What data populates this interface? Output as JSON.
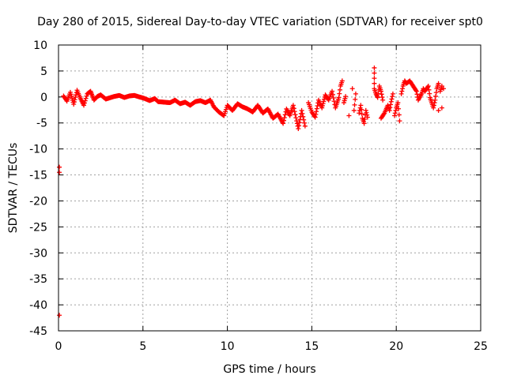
{
  "chart_data": {
    "type": "scatter",
    "title": "Day 280 of 2015, Sidereal Day-to-day VTEC variation (SDTVAR) for receiver spt0",
    "xlabel": "GPS time / hours",
    "ylabel": "SDTVAR / TECUs",
    "xlim": [
      0,
      25
    ],
    "ylim": [
      -45,
      10
    ],
    "xticks": [
      0,
      5,
      10,
      15,
      20,
      25
    ],
    "yticks": [
      10,
      5,
      0,
      -5,
      -10,
      -15,
      -20,
      -25,
      -30,
      -35,
      -40,
      -45
    ],
    "grid": true,
    "marker": "+",
    "colors": {
      "series": "#ff0000",
      "grid": "#a0a0a0",
      "axis": "#000000"
    },
    "series": [
      {
        "name": "SDTVAR",
        "points": [
          [
            0.05,
            -13.5
          ],
          [
            0.05,
            -14.5
          ],
          [
            0.05,
            -42.0
          ],
          [
            0.3,
            0.2
          ],
          [
            0.5,
            -0.8
          ],
          [
            0.7,
            0.9
          ],
          [
            0.9,
            -1.4
          ],
          [
            1.1,
            1.3
          ],
          [
            1.3,
            -0.3
          ],
          [
            1.5,
            -1.6
          ],
          [
            1.7,
            0.6
          ],
          [
            1.9,
            1.1
          ],
          [
            2.1,
            -0.6
          ],
          [
            2.3,
            0.1
          ],
          [
            2.5,
            0.4
          ],
          [
            2.8,
            -0.4
          ],
          [
            3.0,
            -0.2
          ],
          [
            3.3,
            0.1
          ],
          [
            3.6,
            0.3
          ],
          [
            3.9,
            -0.1
          ],
          [
            4.2,
            0.2
          ],
          [
            4.5,
            0.3
          ],
          [
            4.8,
            0.0
          ],
          [
            5.1,
            -0.3
          ],
          [
            5.4,
            -0.7
          ],
          [
            5.7,
            -0.3
          ],
          [
            5.9,
            -0.9
          ],
          [
            6.6,
            -1.1
          ],
          [
            6.9,
            -0.6
          ],
          [
            7.2,
            -1.3
          ],
          [
            7.5,
            -1.0
          ],
          [
            7.8,
            -1.6
          ],
          [
            8.1,
            -0.9
          ],
          [
            8.4,
            -0.7
          ],
          [
            8.7,
            -1.1
          ],
          [
            9.0,
            -0.6
          ],
          [
            9.2,
            -1.9
          ],
          [
            9.5,
            -2.9
          ],
          [
            9.8,
            -3.6
          ],
          [
            10.0,
            -1.6
          ],
          [
            10.3,
            -2.6
          ],
          [
            10.6,
            -1.3
          ],
          [
            10.9,
            -1.9
          ],
          [
            11.2,
            -2.3
          ],
          [
            11.5,
            -2.9
          ],
          [
            11.8,
            -1.6
          ],
          [
            12.1,
            -3.1
          ],
          [
            12.4,
            -2.3
          ],
          [
            12.7,
            -4.1
          ],
          [
            13.0,
            -3.3
          ],
          [
            13.3,
            -5.1
          ],
          [
            13.5,
            -2.3
          ],
          [
            13.7,
            -3.6
          ],
          [
            13.9,
            -1.6
          ],
          [
            14.1,
            -4.6
          ],
          [
            14.2,
            -6.1
          ],
          [
            14.4,
            -2.6
          ],
          [
            14.6,
            -5.6
          ],
          [
            14.8,
            -1.1
          ],
          [
            15.0,
            -2.9
          ],
          [
            15.2,
            -3.9
          ],
          [
            15.4,
            -0.6
          ],
          [
            15.6,
            -2.1
          ],
          [
            15.8,
            0.4
          ],
          [
            16.0,
            -0.6
          ],
          [
            16.2,
            1.1
          ],
          [
            16.4,
            -2.1
          ],
          [
            16.6,
            -0.1
          ],
          [
            16.7,
            2.1
          ],
          [
            16.8,
            3.1
          ],
          [
            16.9,
            -1.1
          ],
          [
            17.0,
            0.1
          ],
          [
            17.2,
            -3.6
          ],
          [
            17.4,
            1.6
          ],
          [
            17.5,
            -2.6
          ],
          [
            17.6,
            0.6
          ],
          [
            17.8,
            -3.1
          ],
          [
            17.9,
            -1.6
          ],
          [
            18.0,
            -4.1
          ],
          [
            18.1,
            -5.1
          ],
          [
            18.2,
            -2.6
          ],
          [
            18.3,
            -3.9
          ],
          [
            18.7,
            5.6
          ],
          [
            18.7,
            4.6
          ],
          [
            18.7,
            3.6
          ],
          [
            18.7,
            2.6
          ],
          [
            18.7,
            1.6
          ],
          [
            18.8,
            0.6
          ],
          [
            18.9,
            -0.1
          ],
          [
            19.0,
            2.1
          ],
          [
            19.1,
            1.1
          ],
          [
            19.2,
            -0.6
          ],
          [
            19.1,
            -4.1
          ],
          [
            19.3,
            -3.1
          ],
          [
            19.5,
            -1.6
          ],
          [
            19.6,
            -2.6
          ],
          [
            19.7,
            -0.9
          ],
          [
            19.8,
            0.6
          ],
          [
            19.9,
            -3.6
          ],
          [
            20.0,
            -2.1
          ],
          [
            20.1,
            -1.1
          ],
          [
            20.2,
            -4.6
          ],
          [
            20.3,
            0.6
          ],
          [
            20.4,
            2.1
          ],
          [
            20.5,
            3.1
          ],
          [
            20.6,
            2.6
          ],
          [
            20.8,
            3.1
          ],
          [
            21.0,
            2.1
          ],
          [
            21.2,
            1.1
          ],
          [
            21.3,
            -0.6
          ],
          [
            21.5,
            0.6
          ],
          [
            21.6,
            1.6
          ],
          [
            21.7,
            1.1
          ],
          [
            21.9,
            2.1
          ],
          [
            22.0,
            -0.1
          ],
          [
            22.1,
            -1.1
          ],
          [
            22.2,
            -2.1
          ],
          [
            22.3,
            -0.6
          ],
          [
            22.4,
            1.6
          ],
          [
            22.5,
            2.6
          ],
          [
            22.5,
            -2.6
          ],
          [
            22.6,
            1.1
          ],
          [
            22.7,
            2.1
          ],
          [
            22.7,
            -2.1
          ],
          [
            22.8,
            1.6
          ]
        ]
      }
    ]
  }
}
